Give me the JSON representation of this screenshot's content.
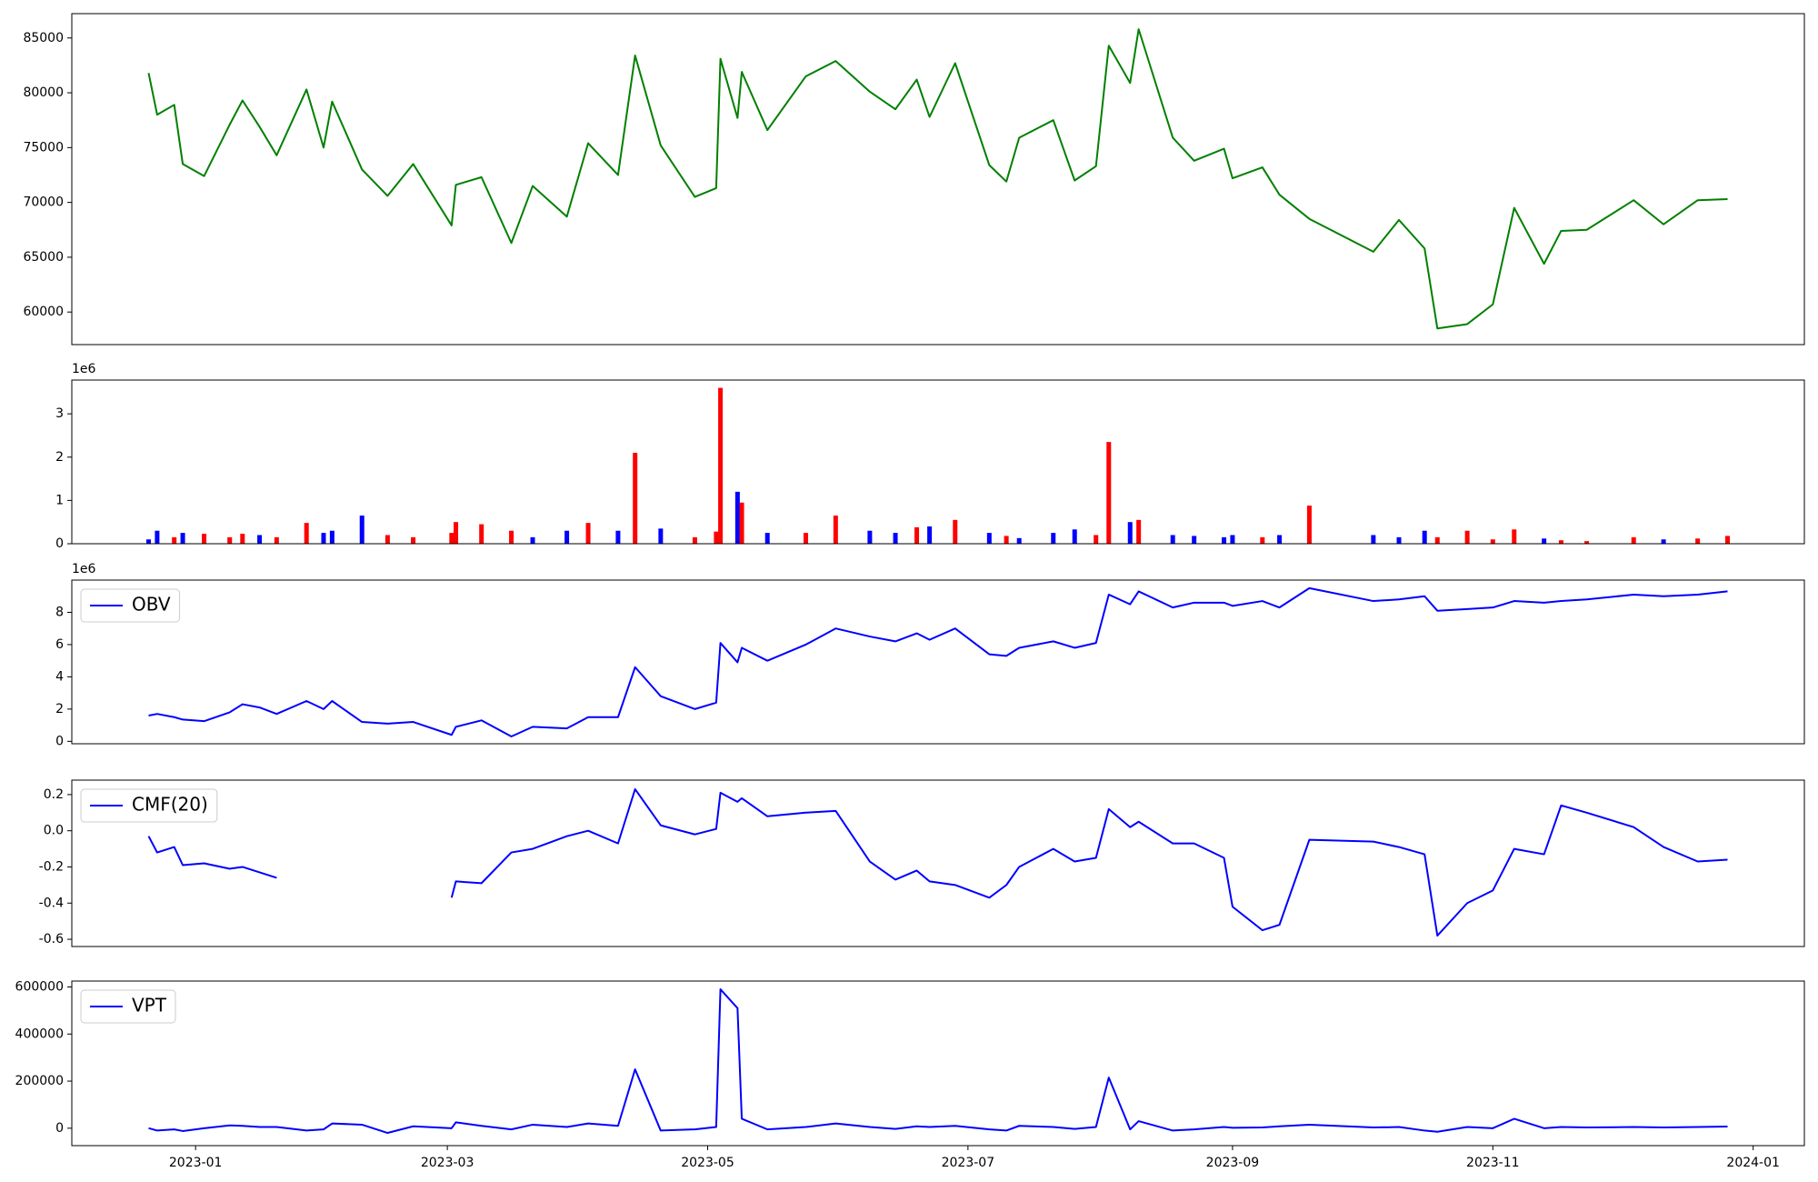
{
  "chart_data": [
    {
      "type": "line",
      "x": [
        "2022-12-21",
        "2022-12-23",
        "2022-12-27",
        "2022-12-29",
        "2023-01-03",
        "2023-01-09",
        "2023-01-12",
        "2023-01-16",
        "2023-01-20",
        "2023-01-27",
        "2023-01-31",
        "2023-02-02",
        "2023-02-09",
        "2023-02-15",
        "2023-02-21",
        "2023-03-02",
        "2023-03-03",
        "2023-03-09",
        "2023-03-16",
        "2023-03-21",
        "2023-03-29",
        "2023-04-03",
        "2023-04-10",
        "2023-04-14",
        "2023-04-20",
        "2023-04-28",
        "2023-05-03",
        "2023-05-04",
        "2023-05-08",
        "2023-05-09",
        "2023-05-15",
        "2023-05-24",
        "2023-05-31",
        "2023-06-08",
        "2023-06-14",
        "2023-06-19",
        "2023-06-22",
        "2023-06-28",
        "2023-07-06",
        "2023-07-10",
        "2023-07-13",
        "2023-07-21",
        "2023-07-26",
        "2023-07-31",
        "2023-08-03",
        "2023-08-08",
        "2023-08-10",
        "2023-08-18",
        "2023-08-23",
        "2023-08-30",
        "2023-09-01",
        "2023-09-08",
        "2023-09-12",
        "2023-09-19",
        "2023-10-04",
        "2023-10-10",
        "2023-10-16",
        "2023-10-19",
        "2023-10-26",
        "2023-11-01",
        "2023-11-06",
        "2023-11-13",
        "2023-11-17",
        "2023-11-23",
        "2023-12-04",
        "2023-12-11",
        "2023-12-19",
        "2023-12-26"
      ],
      "series": [
        {
          "color": "green",
          "values": [
            81800,
            78000,
            78900,
            73500,
            72400,
            77100,
            79300,
            76900,
            74300,
            80300,
            75000,
            79200,
            73000,
            70600,
            73500,
            67900,
            71600,
            72300,
            66300,
            71500,
            68700,
            75400,
            72500,
            83400,
            75200,
            70500,
            71300,
            83100,
            77700,
            81900,
            76600,
            81500,
            82900,
            80100,
            78500,
            81200,
            77800,
            82700,
            73400,
            71900,
            75900,
            77500,
            72000,
            73300,
            84300,
            80900,
            85800,
            75900,
            73800,
            74900,
            72200,
            73200,
            70700,
            68500,
            65500,
            68400,
            65800,
            58500,
            58900,
            60700,
            69500,
            64400,
            67400,
            67500,
            70200,
            68000,
            70200,
            70300
          ]
        }
      ],
      "xlim": [
        "2022-12-03",
        "2024-01-13"
      ],
      "ylim": [
        57030,
        87220
      ],
      "yticks": [
        60000,
        65000,
        70000,
        75000,
        80000,
        85000
      ]
    },
    {
      "type": "bar",
      "x": [
        "2022-12-21",
        "2022-12-23",
        "2022-12-27",
        "2022-12-29",
        "2023-01-03",
        "2023-01-09",
        "2023-01-12",
        "2023-01-16",
        "2023-01-20",
        "2023-01-27",
        "2023-01-31",
        "2023-02-02",
        "2023-02-09",
        "2023-02-15",
        "2023-02-21",
        "2023-03-02",
        "2023-03-03",
        "2023-03-09",
        "2023-03-16",
        "2023-03-21",
        "2023-03-29",
        "2023-04-03",
        "2023-04-10",
        "2023-04-14",
        "2023-04-20",
        "2023-04-28",
        "2023-05-03",
        "2023-05-04",
        "2023-05-08",
        "2023-05-09",
        "2023-05-15",
        "2023-05-24",
        "2023-05-31",
        "2023-06-08",
        "2023-06-14",
        "2023-06-19",
        "2023-06-22",
        "2023-06-28",
        "2023-07-06",
        "2023-07-10",
        "2023-07-13",
        "2023-07-21",
        "2023-07-26",
        "2023-07-31",
        "2023-08-03",
        "2023-08-08",
        "2023-08-10",
        "2023-08-18",
        "2023-08-23",
        "2023-08-30",
        "2023-09-01",
        "2023-09-08",
        "2023-09-12",
        "2023-09-19",
        "2023-10-04",
        "2023-10-10",
        "2023-10-16",
        "2023-10-19",
        "2023-10-26",
        "2023-11-01",
        "2023-11-06",
        "2023-11-13",
        "2023-11-17",
        "2023-11-23",
        "2023-12-04",
        "2023-12-11",
        "2023-12-19",
        "2023-12-26"
      ],
      "values": [
        100000,
        300000,
        150000,
        250000,
        230000,
        150000,
        230000,
        200000,
        150000,
        480000,
        250000,
        300000,
        650000,
        200000,
        150000,
        250000,
        500000,
        450000,
        300000,
        150000,
        300000,
        480000,
        300000,
        2100000,
        350000,
        150000,
        280000,
        3600000,
        1200000,
        950000,
        250000,
        250000,
        650000,
        300000,
        250000,
        380000,
        400000,
        550000,
        250000,
        180000,
        130000,
        250000,
        330000,
        200000,
        2350000,
        500000,
        550000,
        200000,
        180000,
        150000,
        200000,
        150000,
        200000,
        880000,
        200000,
        150000,
        300000,
        150000,
        300000,
        100000,
        330000,
        120000,
        80000,
        60000,
        150000,
        100000,
        120000,
        180000
      ],
      "colors": [
        "blue",
        "blue",
        "red",
        "blue",
        "red",
        "red",
        "red",
        "blue",
        "red",
        "red",
        "blue",
        "blue",
        "blue",
        "red",
        "red",
        "red",
        "red",
        "red",
        "red",
        "blue",
        "blue",
        "red",
        "blue",
        "red",
        "blue",
        "red",
        "red",
        "red",
        "blue",
        "red",
        "blue",
        "red",
        "red",
        "blue",
        "blue",
        "red",
        "blue",
        "red",
        "blue",
        "red",
        "blue",
        "blue",
        "blue",
        "red",
        "red",
        "blue",
        "red",
        "blue",
        "blue",
        "blue",
        "blue",
        "red",
        "blue",
        "red",
        "blue",
        "blue",
        "blue",
        "red",
        "red",
        "red",
        "red",
        "blue",
        "red",
        "red",
        "red",
        "blue",
        "red",
        "red"
      ],
      "xlim": [
        "2022-12-03",
        "2024-01-13"
      ],
      "ylim": [
        0,
        3780000
      ],
      "yticks": [
        0,
        {
          "value": 1000000,
          "label": "1"
        },
        {
          "value": 2000000,
          "label": "2"
        },
        {
          "value": 3000000,
          "label": "3"
        }
      ],
      "y_offset_label": "1e6"
    },
    {
      "type": "line",
      "x": [
        "2022-12-21",
        "2022-12-23",
        "2022-12-27",
        "2022-12-29",
        "2023-01-03",
        "2023-01-09",
        "2023-01-12",
        "2023-01-16",
        "2023-01-20",
        "2023-01-27",
        "2023-01-31",
        "2023-02-02",
        "2023-02-09",
        "2023-02-15",
        "2023-02-21",
        "2023-03-02",
        "2023-03-03",
        "2023-03-09",
        "2023-03-16",
        "2023-03-21",
        "2023-03-29",
        "2023-04-03",
        "2023-04-10",
        "2023-04-14",
        "2023-04-20",
        "2023-04-28",
        "2023-05-03",
        "2023-05-04",
        "2023-05-08",
        "2023-05-09",
        "2023-05-15",
        "2023-05-24",
        "2023-05-31",
        "2023-06-08",
        "2023-06-14",
        "2023-06-19",
        "2023-06-22",
        "2023-06-28",
        "2023-07-06",
        "2023-07-10",
        "2023-07-13",
        "2023-07-21",
        "2023-07-26",
        "2023-07-31",
        "2023-08-03",
        "2023-08-08",
        "2023-08-10",
        "2023-08-18",
        "2023-08-23",
        "2023-08-30",
        "2023-09-01",
        "2023-09-08",
        "2023-09-12",
        "2023-09-19",
        "2023-10-04",
        "2023-10-10",
        "2023-10-16",
        "2023-10-19",
        "2023-10-26",
        "2023-11-01",
        "2023-11-06",
        "2023-11-13",
        "2023-11-17",
        "2023-11-23",
        "2023-12-04",
        "2023-12-11",
        "2023-12-19",
        "2023-12-26"
      ],
      "series": [
        {
          "name": "OBV",
          "color": "blue",
          "values": [
            1600000,
            1700000,
            1500000,
            1350000,
            1250000,
            1800000,
            2300000,
            2100000,
            1700000,
            2500000,
            2000000,
            2500000,
            1200000,
            1100000,
            1200000,
            400000,
            900000,
            1300000,
            300000,
            900000,
            800000,
            1500000,
            1500000,
            4600000,
            2800000,
            2000000,
            2400000,
            6100000,
            4900000,
            5800000,
            5000000,
            6000000,
            7000000,
            6500000,
            6200000,
            6700000,
            6300000,
            7000000,
            5400000,
            5300000,
            5800000,
            6200000,
            5800000,
            6100000,
            9100000,
            8500000,
            9300000,
            8300000,
            8600000,
            8600000,
            8400000,
            8700000,
            8300000,
            9500000,
            8700000,
            8800000,
            9000000,
            8100000,
            8200000,
            8300000,
            8700000,
            8600000,
            8700000,
            8800000,
            9100000,
            9000000,
            9100000,
            9300000
          ]
        }
      ],
      "xlim": [
        "2022-12-03",
        "2024-01-13"
      ],
      "ylim": [
        -150000,
        10000000
      ],
      "yticks": [
        0,
        {
          "value": 2000000,
          "label": "2"
        },
        {
          "value": 4000000,
          "label": "4"
        },
        {
          "value": 6000000,
          "label": "6"
        },
        {
          "value": 8000000,
          "label": "8"
        }
      ],
      "y_offset_label": "1e6",
      "legend": "upper left"
    },
    {
      "type": "line",
      "x": [
        "2022-12-21",
        "2022-12-23",
        "2022-12-27",
        "2022-12-29",
        "2023-01-03",
        "2023-01-09",
        "2023-01-12",
        "2023-01-16",
        "2023-01-20",
        "2023-01-27",
        "2023-01-31",
        "2023-02-02",
        "2023-02-09",
        "2023-02-15",
        "2023-02-21",
        "2023-03-02",
        "2023-03-03",
        "2023-03-09",
        "2023-03-16",
        "2023-03-21",
        "2023-03-29",
        "2023-04-03",
        "2023-04-10",
        "2023-04-14",
        "2023-04-20",
        "2023-04-28",
        "2023-05-03",
        "2023-05-04",
        "2023-05-08",
        "2023-05-09",
        "2023-05-15",
        "2023-05-24",
        "2023-05-31",
        "2023-06-08",
        "2023-06-14",
        "2023-06-19",
        "2023-06-22",
        "2023-06-28",
        "2023-07-06",
        "2023-07-10",
        "2023-07-13",
        "2023-07-21",
        "2023-07-26",
        "2023-07-31",
        "2023-08-03",
        "2023-08-08",
        "2023-08-10",
        "2023-08-18",
        "2023-08-23",
        "2023-08-30",
        "2023-09-01",
        "2023-09-08",
        "2023-09-12",
        "2023-09-19",
        "2023-10-04",
        "2023-10-10",
        "2023-10-16",
        "2023-10-19",
        "2023-10-26",
        "2023-11-01",
        "2023-11-06",
        "2023-11-13",
        "2023-11-17",
        "2023-11-23",
        "2023-12-04",
        "2023-12-11",
        "2023-12-19",
        "2023-12-26"
      ],
      "series": [
        {
          "name": "CMF(20)",
          "color": "blue",
          "values": [
            -0.03,
            -0.12,
            -0.09,
            -0.19,
            -0.18,
            -0.21,
            -0.2,
            -0.23,
            -0.26,
            null,
            null,
            null,
            null,
            null,
            null,
            -0.37,
            -0.28,
            -0.29,
            -0.12,
            -0.1,
            -0.03,
            0.0,
            -0.07,
            0.23,
            0.03,
            -0.02,
            0.01,
            0.21,
            0.16,
            0.18,
            0.08,
            0.1,
            0.11,
            -0.17,
            -0.27,
            -0.22,
            -0.28,
            -0.3,
            -0.37,
            -0.3,
            -0.2,
            -0.1,
            -0.17,
            -0.15,
            0.12,
            0.02,
            0.05,
            -0.07,
            -0.07,
            -0.15,
            -0.42,
            -0.55,
            -0.52,
            -0.05,
            -0.06,
            -0.09,
            -0.13,
            -0.58,
            -0.4,
            -0.33,
            -0.1,
            -0.13,
            0.14,
            0.1,
            0.02,
            -0.09,
            -0.17,
            -0.16
          ]
        }
      ],
      "xlim": [
        "2022-12-03",
        "2024-01-13"
      ],
      "ylim": [
        -0.64,
        0.28
      ],
      "yticks": [
        -0.6,
        -0.4,
        -0.2,
        {
          "value": 0,
          "label": "0.0"
        },
        0.2
      ],
      "legend": "upper left"
    },
    {
      "type": "line",
      "x": [
        "2022-12-21",
        "2022-12-23",
        "2022-12-27",
        "2022-12-29",
        "2023-01-03",
        "2023-01-09",
        "2023-01-12",
        "2023-01-16",
        "2023-01-20",
        "2023-01-27",
        "2023-01-31",
        "2023-02-02",
        "2023-02-09",
        "2023-02-15",
        "2023-02-21",
        "2023-03-02",
        "2023-03-03",
        "2023-03-09",
        "2023-03-16",
        "2023-03-21",
        "2023-03-29",
        "2023-04-03",
        "2023-04-10",
        "2023-04-14",
        "2023-04-20",
        "2023-04-28",
        "2023-05-03",
        "2023-05-04",
        "2023-05-08",
        "2023-05-09",
        "2023-05-15",
        "2023-05-24",
        "2023-05-31",
        "2023-06-08",
        "2023-06-14",
        "2023-06-19",
        "2023-06-22",
        "2023-06-28",
        "2023-07-06",
        "2023-07-10",
        "2023-07-13",
        "2023-07-21",
        "2023-07-26",
        "2023-07-31",
        "2023-08-03",
        "2023-08-08",
        "2023-08-10",
        "2023-08-18",
        "2023-08-23",
        "2023-08-30",
        "2023-09-01",
        "2023-09-08",
        "2023-09-12",
        "2023-09-19",
        "2023-10-04",
        "2023-10-10",
        "2023-10-16",
        "2023-10-19",
        "2023-10-26",
        "2023-11-01",
        "2023-11-06",
        "2023-11-13",
        "2023-11-17",
        "2023-11-23",
        "2023-12-04",
        "2023-12-11",
        "2023-12-19",
        "2023-12-26"
      ],
      "series": [
        {
          "name": "VPT",
          "color": "blue",
          "values": [
            0,
            -10000,
            -5000,
            -12000,
            0,
            12000,
            10000,
            5000,
            5000,
            -10000,
            -5000,
            20000,
            15000,
            -20000,
            8000,
            0,
            25000,
            10000,
            -5000,
            15000,
            5000,
            20000,
            10000,
            250000,
            -10000,
            -5000,
            5000,
            590000,
            510000,
            40000,
            -5000,
            5000,
            20000,
            5000,
            -3000,
            8000,
            5000,
            10000,
            -5000,
            -10000,
            10000,
            5000,
            -3000,
            5000,
            215000,
            -5000,
            30000,
            -10000,
            -5000,
            5000,
            2000,
            3000,
            8000,
            15000,
            3000,
            5000,
            -10000,
            -15000,
            5000,
            0,
            40000,
            0,
            5000,
            3000,
            5000,
            3000,
            5000,
            7000
          ]
        }
      ],
      "xlim": [
        "2022-12-03",
        "2024-01-13"
      ],
      "ylim": [
        -74000,
        625000
      ],
      "yticks": [
        0,
        200000,
        400000,
        600000
      ],
      "xticks": [
        {
          "value": "2023-01-01",
          "label": "2023-01"
        },
        {
          "value": "2023-03-01",
          "label": "2023-03"
        },
        {
          "value": "2023-05-01",
          "label": "2023-05"
        },
        {
          "value": "2023-07-01",
          "label": "2023-07"
        },
        {
          "value": "2023-09-01",
          "label": "2023-09"
        },
        {
          "value": "2023-11-01",
          "label": "2023-11"
        },
        {
          "value": "2024-01-01",
          "label": "2024-01"
        }
      ],
      "legend": "upper left"
    }
  ]
}
